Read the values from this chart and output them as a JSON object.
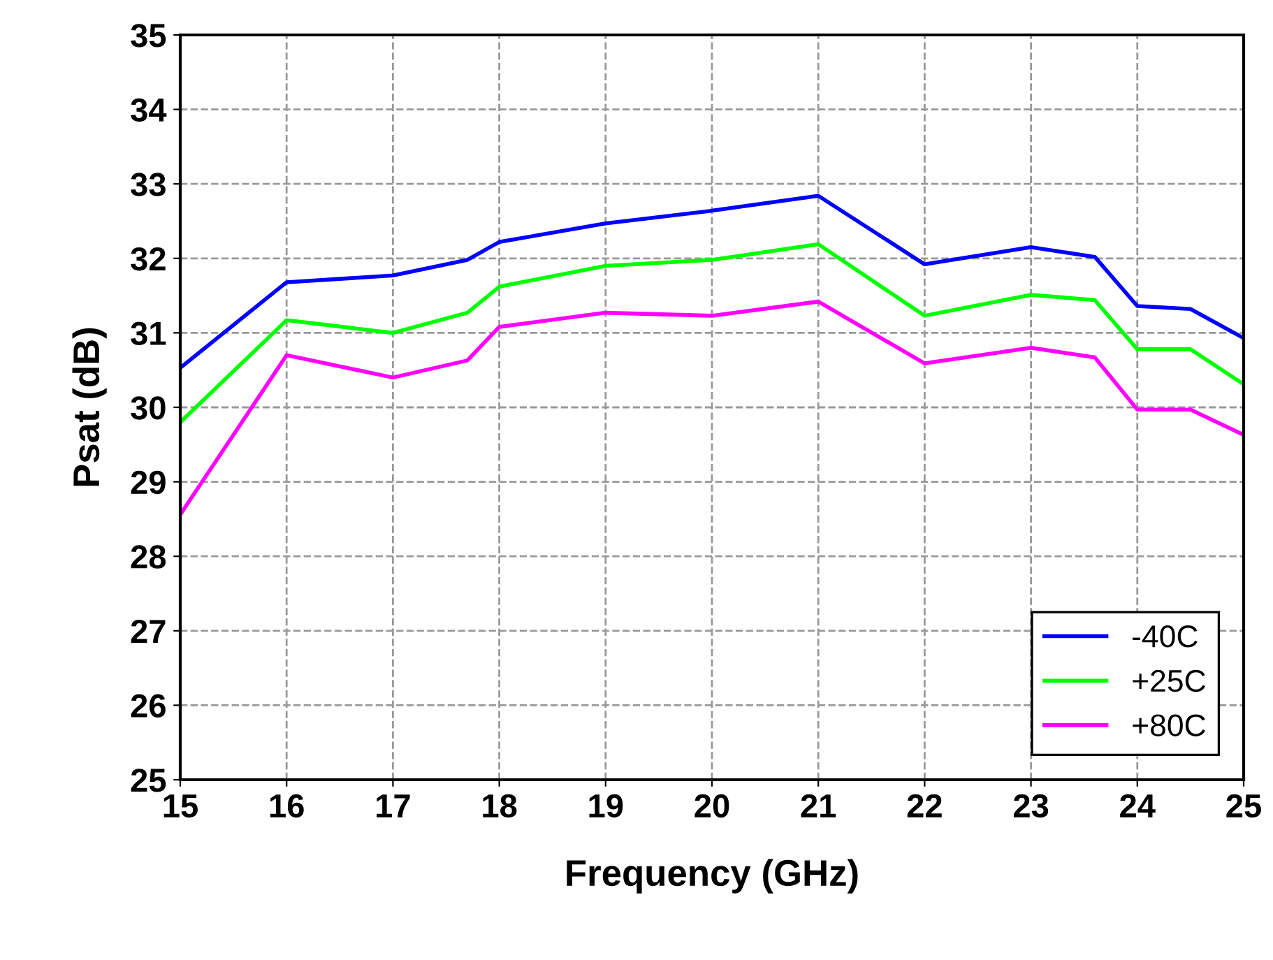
{
  "chart_data": {
    "type": "line",
    "xlabel": "Frequency (GHz)",
    "ylabel": "Psat (dB)",
    "xlim": [
      15,
      25
    ],
    "xticks": [
      15,
      16,
      17,
      18,
      19,
      20,
      21,
      22,
      23,
      24,
      25
    ],
    "ylim": [
      25,
      35
    ],
    "yticks": [
      25,
      26,
      27,
      28,
      29,
      30,
      31,
      32,
      33,
      34,
      35
    ],
    "grid": true,
    "legend": "bottom right",
    "line_style": "solid",
    "marker": "none",
    "series": [
      {
        "name": "-40C",
        "color": "#0000ff",
        "x": [
          15,
          16,
          17,
          17.7,
          18,
          19,
          20,
          21,
          22,
          23,
          23.6,
          24,
          24.5,
          25
        ],
        "values": [
          30.53,
          31.68,
          31.77,
          31.98,
          32.22,
          32.47,
          32.64,
          32.84,
          31.92,
          32.15,
          32.02,
          31.36,
          31.32,
          30.93
        ]
      },
      {
        "name": "+25C",
        "color": "#00ff00",
        "x": [
          15,
          16,
          17,
          17.7,
          18,
          19,
          20,
          21,
          22,
          23,
          23.6,
          24,
          24.5,
          25
        ],
        "values": [
          29.8,
          31.17,
          31.0,
          31.27,
          31.62,
          31.9,
          31.98,
          32.19,
          31.23,
          31.51,
          31.44,
          30.78,
          30.78,
          30.31
        ]
      },
      {
        "name": "+80C",
        "color": "#ff00ff",
        "x": [
          15,
          16,
          17,
          17.7,
          18,
          19,
          20,
          21,
          22,
          23,
          23.6,
          24,
          24.5,
          25
        ],
        "values": [
          28.56,
          30.7,
          30.4,
          30.63,
          31.08,
          31.27,
          31.23,
          31.42,
          30.59,
          30.8,
          30.67,
          29.97,
          29.97,
          29.63
        ]
      }
    ]
  }
}
